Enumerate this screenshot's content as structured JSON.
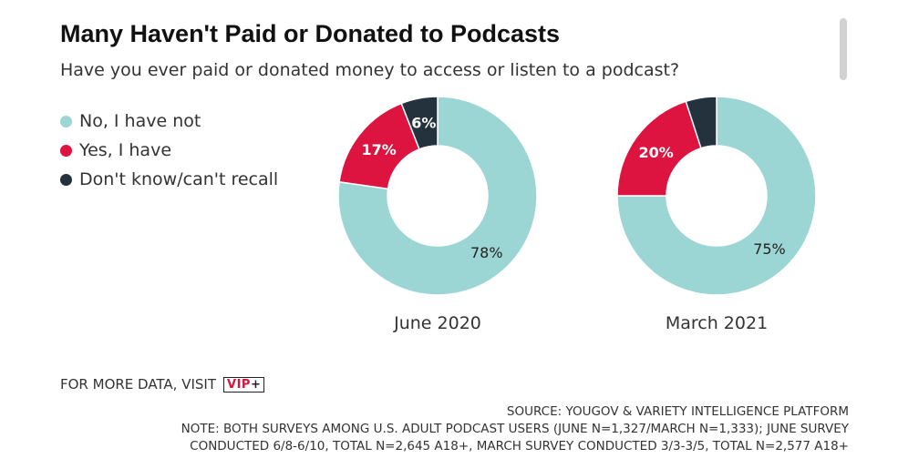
{
  "header": {
    "title": "Many Haven't Paid or Donated to Podcasts",
    "subtitle": "Have you ever paid or donated money to access or listen to a podcast?"
  },
  "legend": [
    {
      "label": "No, I have not",
      "color": "#9cd6d4"
    },
    {
      "label": "Yes, I have",
      "color": "#dc143f"
    },
    {
      "label": "Don't know/can't recall",
      "color": "#23323d"
    }
  ],
  "chart_data": [
    {
      "type": "pie",
      "title": "June 2020",
      "slices": [
        {
          "name": "No, I have not",
          "value": 78,
          "label": "78%",
          "color": "#9cd6d4"
        },
        {
          "name": "Yes, I have",
          "value": 17,
          "label": "17%",
          "color": "#dc143f"
        },
        {
          "name": "Don't know/can't recall",
          "value": 6,
          "label": "6%",
          "color": "#23323d"
        }
      ]
    },
    {
      "type": "pie",
      "title": "March 2021",
      "slices": [
        {
          "name": "No, I have not",
          "value": 75,
          "label": "75%",
          "color": "#9cd6d4"
        },
        {
          "name": "Yes, I have",
          "value": 20,
          "label": "20%",
          "color": "#dc143f"
        },
        {
          "name": "Don't know/can't recall",
          "value": 5,
          "label": "",
          "color": "#23323d"
        }
      ]
    }
  ],
  "footer": {
    "more_data": "FOR MORE DATA, VISIT",
    "badge_vip": "VIP",
    "badge_plus": "+",
    "source": "SOURCE: YOUGOV & VARIETY INTELLIGENCE PLATFORM",
    "note_line1": "NOTE: BOTH SURVEYS AMONG U.S. ADULT PODCAST USERS (JUNE N=1,327/MARCH N=1,333); JUNE SURVEY",
    "note_line2": "CONDUCTED 6/8-6/10, TOTAL N=2,645 A18+, MARCH SURVEY CONDUCTED 3/3-3/5, TOTAL N=2,577 A18+"
  }
}
